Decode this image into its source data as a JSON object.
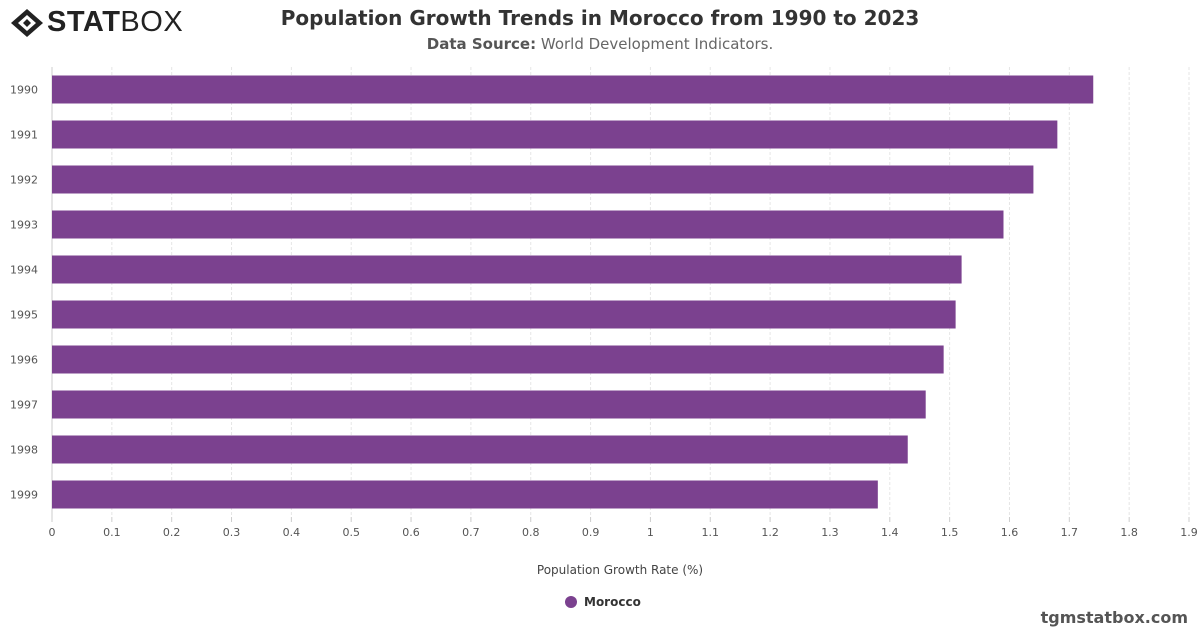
{
  "logo": {
    "bold": "STAT",
    "light": "BOX"
  },
  "title": "Population Growth Trends in Morocco from 1990 to 2023",
  "subtitle": {
    "label": "Data Source:",
    "value": "World Development Indicators."
  },
  "credit": "tgmstatbox.com",
  "colors": {
    "bar": "#7b418f"
  },
  "chart_data": {
    "type": "bar",
    "orientation": "horizontal",
    "title": "Population Growth Trends in Morocco from 1990 to 2023",
    "xlabel": "Population Growth Rate (%)",
    "ylabel": "",
    "categories": [
      "1990",
      "1991",
      "1992",
      "1993",
      "1994",
      "1995",
      "1996",
      "1997",
      "1998",
      "1999"
    ],
    "series": [
      {
        "name": "Morocco",
        "values": [
          1.74,
          1.68,
          1.64,
          1.59,
          1.52,
          1.51,
          1.49,
          1.46,
          1.43,
          1.38
        ]
      }
    ],
    "xlim": [
      0,
      1.9
    ],
    "xticks": [
      "0",
      "0.1",
      "0.2",
      "0.3",
      "0.4",
      "0.5",
      "0.6",
      "0.7",
      "0.8",
      "0.9",
      "1",
      "1.1",
      "1.2",
      "1.3",
      "1.4",
      "1.5",
      "1.6",
      "1.7",
      "1.8",
      "1.9"
    ],
    "grid": true,
    "legend": "bottom"
  }
}
